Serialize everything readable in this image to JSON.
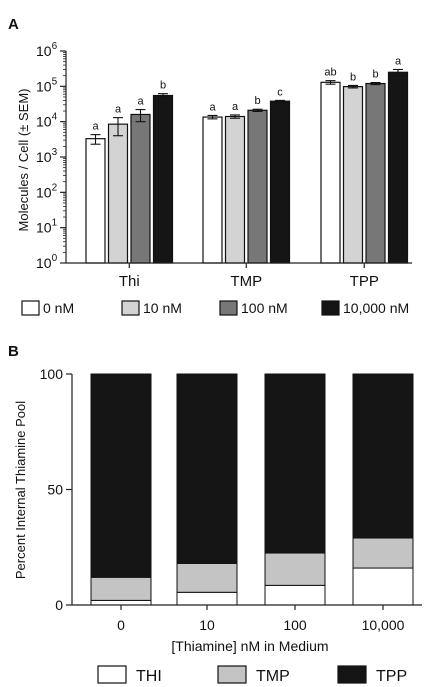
{
  "chart_data": [
    {
      "panel": "A",
      "type": "bar",
      "ylabel": "Molecules / Cell (± SEM)",
      "yscale": "log",
      "ylim": [
        1,
        1000000
      ],
      "yticks": [
        {
          "value": 1,
          "base": "10",
          "exp": "0"
        },
        {
          "value": 10,
          "base": "10",
          "exp": "1"
        },
        {
          "value": 100,
          "base": "10",
          "exp": "2"
        },
        {
          "value": 1000,
          "base": "10",
          "exp": "3"
        },
        {
          "value": 10000,
          "base": "10",
          "exp": "4"
        },
        {
          "value": 100000,
          "base": "10",
          "exp": "5"
        },
        {
          "value": 1000000,
          "base": "10",
          "exp": "6"
        }
      ],
      "categories": [
        "Thi",
        "TMP",
        "TPP"
      ],
      "legend_position": "bottom",
      "series": [
        {
          "name": "0 nM",
          "color": "#ffffff",
          "values": [
            3300,
            13500,
            130000
          ],
          "errors": [
            1000,
            1500,
            15000
          ],
          "letters": [
            "a",
            "a",
            "ab"
          ]
        },
        {
          "name": "10 nM",
          "color": "#d3d3d3",
          "values": [
            8500,
            14000,
            98000
          ],
          "errors": [
            4500,
            1500,
            8000
          ],
          "letters": [
            "a",
            "a",
            "b"
          ]
        },
        {
          "name": "100 nM",
          "color": "#777777",
          "values": [
            16000,
            21000,
            120000
          ],
          "errors": [
            6000,
            1500,
            8000
          ],
          "letters": [
            "a",
            "b",
            "b"
          ]
        },
        {
          "name": "10,000 nM",
          "color": "#151515",
          "values": [
            55000,
            38000,
            250000
          ],
          "errors": [
            7000,
            2000,
            50000
          ],
          "letters": [
            "b",
            "c",
            "a"
          ]
        }
      ]
    },
    {
      "panel": "B",
      "type": "bar",
      "stacked": true,
      "ylabel": "Percent Internal Thiamine Pool",
      "xlabel": "[Thiamine] nM in Medium",
      "ylim": [
        0,
        100
      ],
      "yticks": [
        0,
        50,
        100
      ],
      "categories": [
        "0",
        "10",
        "100",
        "10,000"
      ],
      "legend_position": "bottom",
      "series": [
        {
          "name": "THI",
          "color": "#ffffff",
          "values": [
            2,
            5.5,
            8.5,
            16
          ]
        },
        {
          "name": "TMP",
          "color": "#c4c4c4",
          "values": [
            10,
            12.5,
            14,
            13
          ]
        },
        {
          "name": "TPP",
          "color": "#151515",
          "values": [
            88,
            82,
            77.5,
            71
          ]
        }
      ]
    }
  ]
}
